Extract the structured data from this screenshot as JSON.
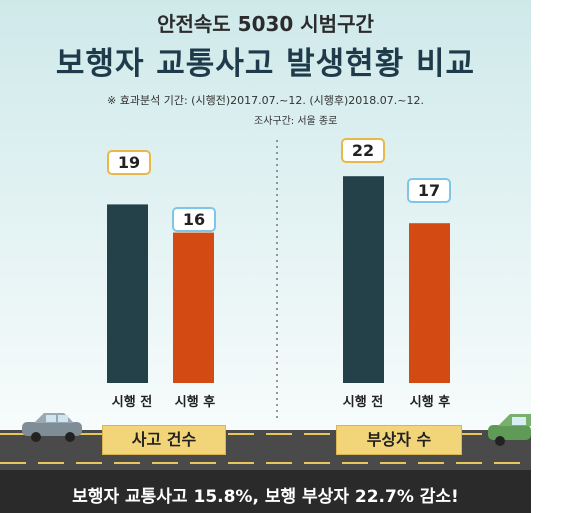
{
  "header": {
    "subtitle": "안전속도 5030 시범구간",
    "title": "보행자 교통사고 발생현황 비교",
    "note": "※ 효과분석 기간: (시행전)2017.07.~12. (시행후)2018.07.~12.",
    "area": "조사구간: 서울 종로"
  },
  "colors": {
    "before": "#24414a",
    "after": "#d34a12",
    "road": "#4a4a4a",
    "lane": "#e8c65c"
  },
  "chart_data": {
    "type": "bar",
    "groups": [
      {
        "name": "사고 건수",
        "categories": [
          "시행 전",
          "시행 후"
        ],
        "values": [
          19,
          16
        ]
      },
      {
        "name": "부상자 수",
        "categories": [
          "시행 전",
          "시행 후"
        ],
        "values": [
          22,
          17
        ]
      }
    ],
    "series": [
      {
        "name": "시행 전",
        "values": [
          19,
          22
        ]
      },
      {
        "name": "시행 후",
        "values": [
          16,
          17
        ]
      }
    ]
  },
  "footer": {
    "summary": "보행자 교통사고 15.8%, 보행 부상자 22.7% 감소!"
  }
}
